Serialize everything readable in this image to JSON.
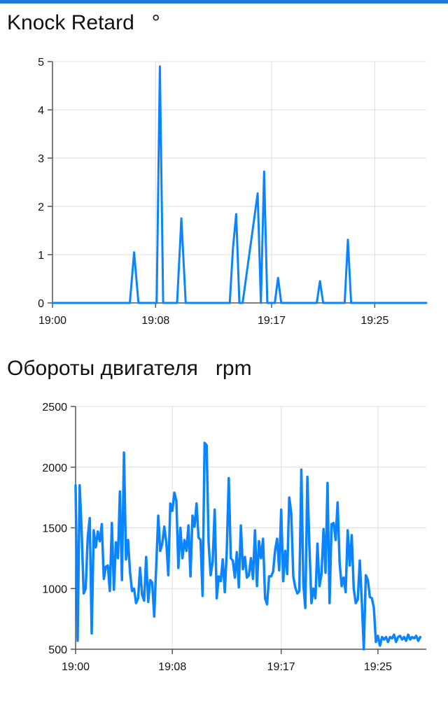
{
  "colors": {
    "accent": "#1f7ad9",
    "series": "#0a84ff",
    "grid": "#dddddd",
    "axis": "#555555"
  },
  "chart_data": [
    {
      "type": "line",
      "title": "Knock Retard",
      "unit": "°",
      "grid": true,
      "xlim": [
        "19:00",
        "19:29"
      ],
      "ylim": [
        0,
        5
      ],
      "x_ticks": [
        "19:00",
        "19:08",
        "19:17",
        "19:25"
      ],
      "y_ticks": [
        0,
        1,
        2,
        3,
        4,
        5
      ],
      "series": [
        {
          "x": [
            "19:00",
            "19:06:00",
            "19:06:20",
            "19:06:40",
            "19:08:05",
            "19:08:20",
            "19:08:35",
            "19:09:40",
            "19:10:00",
            "19:10:20",
            "19:13:45",
            "19:14:00",
            "19:14:15",
            "19:14:30",
            "19:14:45",
            "19:15:55",
            "19:16:10",
            "19:16:25",
            "19:16:40",
            "19:16:55",
            "19:17:15",
            "19:17:30",
            "19:17:45",
            "19:20:30",
            "19:20:45",
            "19:21:00",
            "19:22:40",
            "19:22:55",
            "19:23:10",
            "19:29"
          ],
          "y": [
            0,
            0,
            1.05,
            0,
            0,
            4.9,
            0,
            0,
            1.75,
            0,
            0,
            1.13,
            1.84,
            0,
            0,
            2.27,
            0,
            2.72,
            0,
            0,
            0,
            0.52,
            0,
            0,
            0.45,
            0,
            0,
            1.31,
            0,
            0
          ]
        }
      ]
    },
    {
      "type": "line",
      "title": "Обороты двигателя",
      "unit": "rpm",
      "grid": true,
      "xlim": [
        "19:00",
        "19:29"
      ],
      "ylim": [
        500,
        2500
      ],
      "x_ticks": [
        "19:00",
        "19:08",
        "19:17",
        "19:25"
      ],
      "y_ticks": [
        500,
        1000,
        1500,
        2000,
        2500
      ],
      "series": [
        {
          "start": "19:00",
          "step_seconds": 10,
          "y": [
            1850,
            570,
            1850,
            1480,
            960,
            1000,
            1420,
            1580,
            630,
            1480,
            1340,
            1470,
            1390,
            1530,
            1080,
            1180,
            1190,
            980,
            1540,
            990,
            1380,
            1250,
            1800,
            1070,
            2120,
            1240,
            1400,
            1140,
            980,
            1000,
            880,
            920,
            1170,
            950,
            900,
            1260,
            890,
            1070,
            1050,
            770,
            1190,
            1600,
            1310,
            1370,
            1510,
            1380,
            1110,
            1700,
            1640,
            1790,
            1720,
            1170,
            1500,
            1250,
            1400,
            1310,
            1520,
            1100,
            1600,
            1510,
            1700,
            1420,
            1400,
            940,
            2200,
            2180,
            1380,
            1110,
            1220,
            1650,
            920,
            1100,
            1060,
            1240,
            970,
            1300,
            1910,
            1250,
            1230,
            1090,
            1300,
            1010,
            1520,
            1160,
            1260,
            1090,
            1110,
            1250,
            1080,
            1480,
            1020,
            1390,
            1250,
            1410,
            920,
            870,
            1100,
            1100,
            1140,
            1320,
            1410,
            1150,
            1650,
            1060,
            1310,
            1120,
            1750,
            1620,
            1100,
            1010,
            960,
            980,
            1980,
            1030,
            840,
            1920,
            1350,
            880,
            1000,
            920,
            1370,
            1020,
            1120,
            1490,
            1130,
            1870,
            880,
            1530,
            1540,
            1400,
            1710,
            1210,
            1020,
            1090,
            970,
            1480,
            1190,
            1440,
            1000,
            880,
            910,
            1230,
            890,
            500,
            1110,
            1070,
            930,
            920,
            840,
            560,
            610,
            530,
            600,
            580,
            600,
            560,
            600,
            590,
            620,
            560,
            600,
            610,
            580,
            600,
            570,
            620,
            580,
            600,
            590,
            610,
            570,
            600
          ]
        }
      ]
    }
  ]
}
